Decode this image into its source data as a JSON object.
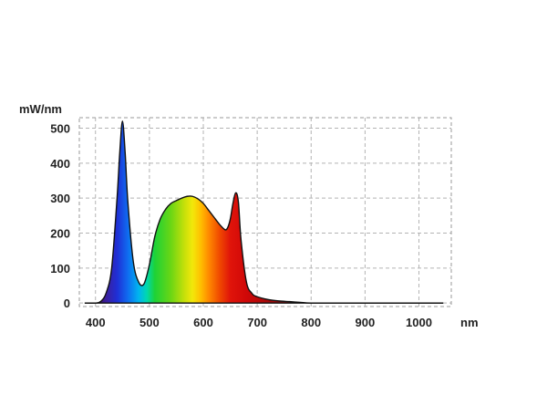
{
  "chart_data": {
    "type": "area",
    "title": "",
    "ylabel": "mW/nm",
    "xlabel": "nm",
    "xlim": [
      370,
      1060
    ],
    "ylim": [
      -10,
      530
    ],
    "x_ticks": [
      400,
      500,
      600,
      700,
      800,
      900,
      1000
    ],
    "y_ticks": [
      0,
      100,
      200,
      300,
      400,
      500
    ],
    "x_tick_labels": [
      "400",
      "500",
      "600",
      "700",
      "800",
      "900",
      "1000"
    ],
    "y_tick_labels": [
      "0",
      "100",
      "200",
      "300",
      "400",
      "500"
    ],
    "grid": true,
    "legend": "none",
    "fill": "visible spectrum gradient (violet → blue → green → yellow → orange → red)",
    "series": [
      {
        "x": [
          380,
          400,
          410,
          420,
          430,
          440,
          445,
          450,
          455,
          460,
          470,
          480,
          490,
          500,
          510,
          520,
          530,
          540,
          550,
          560,
          570,
          580,
          590,
          600,
          610,
          620,
          630,
          640,
          645,
          650,
          655,
          660,
          665,
          670,
          680,
          690,
          700,
          720,
          740,
          760,
          780,
          800,
          850,
          900,
          950,
          1000,
          1045
        ],
        "y": [
          0,
          0,
          5,
          30,
          100,
          300,
          430,
          520,
          430,
          290,
          120,
          60,
          55,
          110,
          190,
          240,
          268,
          285,
          293,
          300,
          305,
          305,
          298,
          285,
          265,
          245,
          225,
          210,
          215,
          240,
          285,
          315,
          290,
          180,
          60,
          28,
          18,
          10,
          6,
          4,
          2,
          0,
          0,
          0,
          0,
          0,
          0
        ]
      }
    ]
  },
  "colors": {
    "grid": "#b3b3b3",
    "axis": "#999999",
    "curve": "#111111",
    "text": "#222222"
  }
}
